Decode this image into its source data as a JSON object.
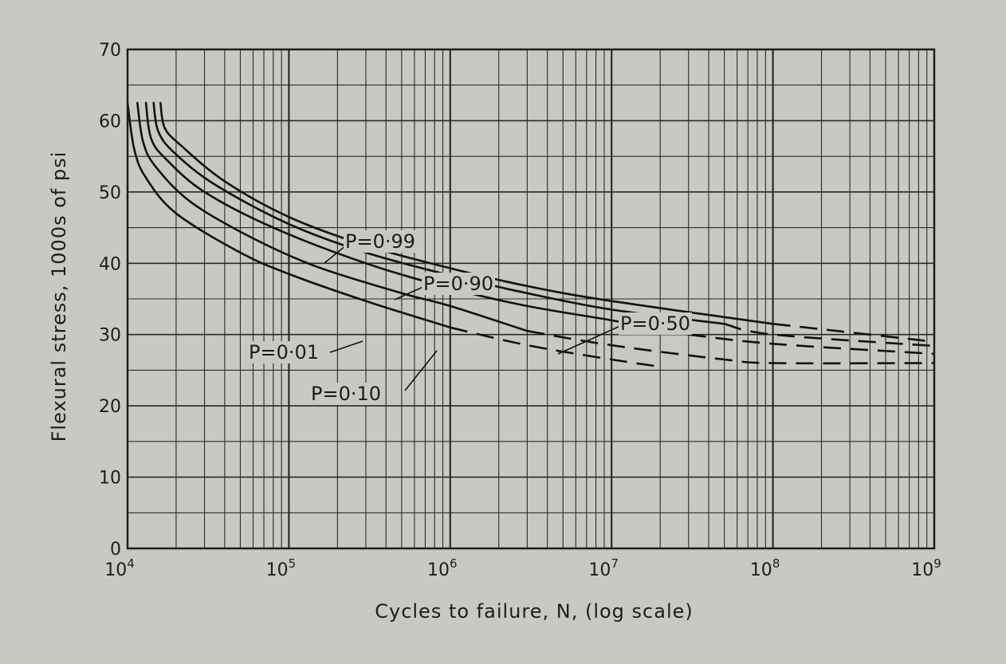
{
  "chart_data": {
    "type": "line",
    "xlabel": "Cycles to failure, N, (log scale)",
    "ylabel": "Flexural stress, 1000s of psi",
    "x_scale": "log",
    "xlim": [
      10000,
      1000000000
    ],
    "ylim": [
      0,
      70
    ],
    "grid": true,
    "x_ticks": [
      {
        "value": 10000,
        "mantissa": "10",
        "exp": "4"
      },
      {
        "value": 100000,
        "mantissa": "10",
        "exp": "5"
      },
      {
        "value": 1000000,
        "mantissa": "10",
        "exp": "6"
      },
      {
        "value": 10000000,
        "mantissa": "10",
        "exp": "7"
      },
      {
        "value": 100000000,
        "mantissa": "10",
        "exp": "8"
      },
      {
        "value": 1000000000,
        "mantissa": "10",
        "exp": "9"
      }
    ],
    "y_ticks": [
      "0",
      "10",
      "20",
      "30",
      "40",
      "50",
      "60",
      "70"
    ],
    "series": [
      {
        "name": "P=0·01",
        "solid": [
          [
            10000,
            62.5
          ],
          [
            11000,
            56
          ],
          [
            13000,
            52
          ],
          [
            20000,
            47
          ],
          [
            50000,
            41.5
          ],
          [
            100000,
            38.5
          ],
          [
            300000,
            34.7
          ],
          [
            1000000,
            31
          ]
        ],
        "dashed": [
          [
            1000000,
            31
          ],
          [
            3000000,
            28.5
          ],
          [
            10000000,
            26.5
          ],
          [
            20000000,
            25.5
          ]
        ]
      },
      {
        "name": "P=0·10",
        "solid": [
          [
            11500,
            62.5
          ],
          [
            12500,
            57
          ],
          [
            15000,
            53.5
          ],
          [
            25000,
            48.5
          ],
          [
            60000,
            43.5
          ],
          [
            150000,
            39.5
          ],
          [
            500000,
            35.8
          ],
          [
            1000000,
            34
          ],
          [
            3000000,
            30.5
          ]
        ],
        "dashed": [
          [
            3000000,
            30.5
          ],
          [
            10000000,
            28.5
          ],
          [
            50000000,
            26.5
          ],
          [
            100000000,
            26
          ],
          [
            1000000000,
            26
          ]
        ]
      },
      {
        "name": "P=0·50",
        "solid": [
          [
            13000,
            62.5
          ],
          [
            14000,
            57.5
          ],
          [
            17500,
            54.5
          ],
          [
            30000,
            50
          ],
          [
            80000,
            45
          ],
          [
            300000,
            40
          ],
          [
            1000000,
            36.5
          ],
          [
            3000000,
            34
          ],
          [
            10000000,
            32
          ],
          [
            30000000,
            30
          ]
        ],
        "dashed": [
          [
            30000000,
            30
          ],
          [
            100000000,
            28.7
          ],
          [
            1000000000,
            27.3
          ]
        ]
      },
      {
        "name": "P=0·90",
        "solid": [
          [
            14500,
            62.5
          ],
          [
            15500,
            58.5
          ],
          [
            19500,
            55.5
          ],
          [
            35000,
            51
          ],
          [
            100000,
            45.5
          ],
          [
            300000,
            41.5
          ],
          [
            1000000,
            38.3
          ],
          [
            3000000,
            35.8
          ],
          [
            10000000,
            33.5
          ],
          [
            50000000,
            31.5
          ]
        ],
        "dashed": [
          [
            50000000,
            31.5
          ],
          [
            100000000,
            30
          ],
          [
            1000000000,
            28.4
          ]
        ]
      },
      {
        "name": "P=0·99",
        "solid": [
          [
            16000,
            62.5
          ],
          [
            17000,
            59
          ],
          [
            21500,
            56.5
          ],
          [
            40000,
            51.5
          ],
          [
            100000,
            46.5
          ],
          [
            300000,
            42.5
          ],
          [
            1000000,
            39.3
          ],
          [
            3000000,
            36.8
          ],
          [
            10000000,
            34.7
          ],
          [
            100000000,
            31.5
          ]
        ],
        "dashed": [
          [
            100000000,
            31.5
          ],
          [
            1000000000,
            29
          ]
        ]
      }
    ]
  }
}
